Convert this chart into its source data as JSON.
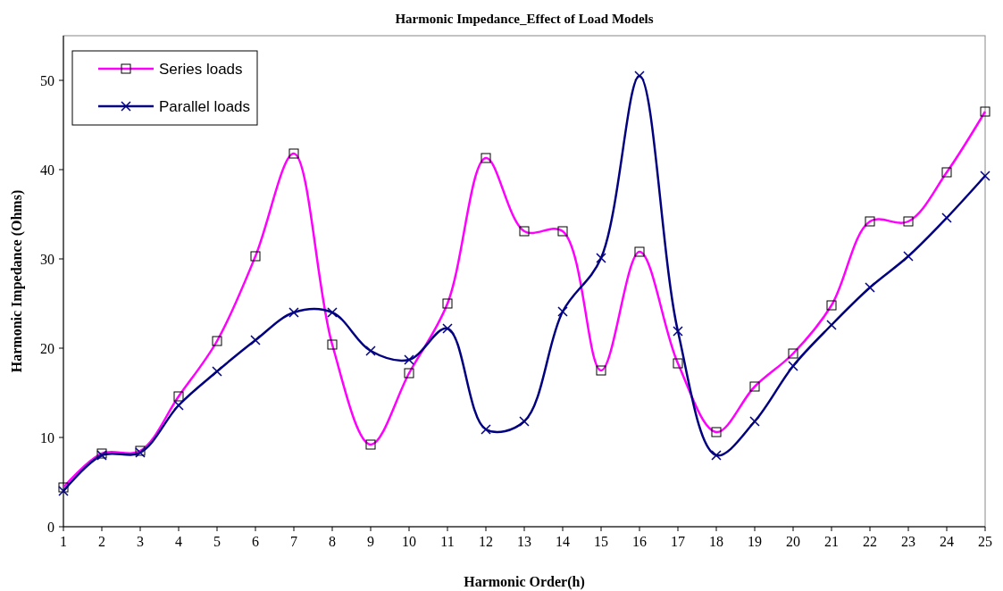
{
  "chart_data": {
    "type": "line",
    "title": "Harmonic Impedance_Effect of Load Models",
    "xlabel": "Harmonic Order(h)",
    "ylabel": "Harmonic Impedance (Ohms)",
    "x": [
      1,
      2,
      3,
      4,
      5,
      6,
      7,
      8,
      9,
      10,
      11,
      12,
      13,
      14,
      15,
      16,
      17,
      18,
      19,
      20,
      21,
      22,
      23,
      24,
      25
    ],
    "xlim": [
      1,
      25
    ],
    "xticks": [
      1,
      2,
      3,
      4,
      5,
      6,
      7,
      8,
      9,
      10,
      11,
      12,
      13,
      14,
      15,
      16,
      17,
      18,
      19,
      20,
      21,
      22,
      23,
      24,
      25
    ],
    "ylim": [
      0,
      55
    ],
    "yticks": [
      0,
      10,
      20,
      30,
      40,
      50
    ],
    "grid": false,
    "legend": "top left",
    "series": [
      {
        "name": "Series loads",
        "color": "#ff00ff",
        "marker": "square",
        "values": [
          4.4,
          8.2,
          8.5,
          14.6,
          20.8,
          30.3,
          41.8,
          20.4,
          9.2,
          17.2,
          25.0,
          41.3,
          33.1,
          33.1,
          17.5,
          30.8,
          18.3,
          10.6,
          15.7,
          19.4,
          24.8,
          34.2,
          34.2,
          39.7,
          46.5
        ]
      },
      {
        "name": "Parallel loads",
        "color": "#000080",
        "marker": "cross",
        "values": [
          4.0,
          8.0,
          8.3,
          13.6,
          17.4,
          20.9,
          24.0,
          24.0,
          19.7,
          18.7,
          22.2,
          10.9,
          11.8,
          24.1,
          30.1,
          50.5,
          21.9,
          8.0,
          11.8,
          18.0,
          22.6,
          26.8,
          30.3,
          34.6,
          39.3
        ]
      }
    ]
  }
}
